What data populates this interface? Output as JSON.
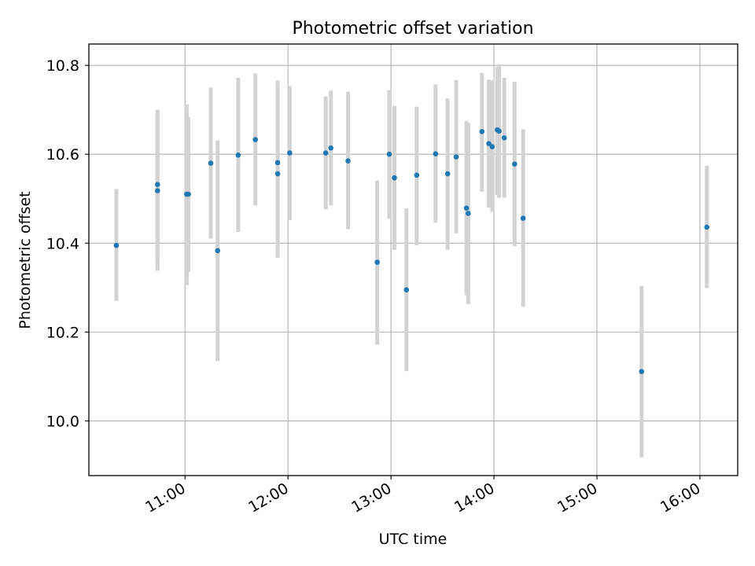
{
  "chart_data": {
    "type": "scatter",
    "title": "Photometric offset variation",
    "xlabel": "UTC time",
    "ylabel": "Photometric offset",
    "x_is_time": true,
    "xlim": [
      "10:04",
      "16:22"
    ],
    "ylim": [
      9.877,
      10.848
    ],
    "x_ticks": [
      "11:00",
      "12:00",
      "13:00",
      "14:00",
      "15:00",
      "16:00"
    ],
    "y_ticks": [
      "10.0",
      "10.2",
      "10.4",
      "10.6",
      "10.8"
    ],
    "grid": true,
    "marker_color": "#1f77b4",
    "errorbar_color": "#d3d3d3",
    "points": [
      {
        "t": "10:20",
        "y": 10.395,
        "lo": 10.27,
        "hi": 10.522
      },
      {
        "t": "10:44",
        "y": 10.532,
        "lo": 10.36,
        "hi": 10.7
      },
      {
        "t": "10:44",
        "y": 10.518,
        "lo": 10.338,
        "hi": 10.698
      },
      {
        "t": "11:01",
        "y": 10.51,
        "lo": 10.305,
        "hi": 10.712
      },
      {
        "t": "11:02",
        "y": 10.51,
        "lo": 10.335,
        "hi": 10.684
      },
      {
        "t": "11:15",
        "y": 10.58,
        "lo": 10.41,
        "hi": 10.75
      },
      {
        "t": "11:19",
        "y": 10.383,
        "lo": 10.135,
        "hi": 10.631
      },
      {
        "t": "11:31",
        "y": 10.598,
        "lo": 10.425,
        "hi": 10.772
      },
      {
        "t": "11:41",
        "y": 10.633,
        "lo": 10.485,
        "hi": 10.782
      },
      {
        "t": "11:54",
        "y": 10.581,
        "lo": 10.4,
        "hi": 10.766
      },
      {
        "t": "11:54",
        "y": 10.556,
        "lo": 10.367,
        "hi": 10.745
      },
      {
        "t": "12:01",
        "y": 10.603,
        "lo": 10.452,
        "hi": 10.754
      },
      {
        "t": "12:22",
        "y": 10.603,
        "lo": 10.476,
        "hi": 10.73
      },
      {
        "t": "12:25",
        "y": 10.614,
        "lo": 10.485,
        "hi": 10.743
      },
      {
        "t": "12:35",
        "y": 10.585,
        "lo": 10.431,
        "hi": 10.741
      },
      {
        "t": "12:52",
        "y": 10.357,
        "lo": 10.172,
        "hi": 10.541
      },
      {
        "t": "12:59",
        "y": 10.6,
        "lo": 10.455,
        "hi": 10.744
      },
      {
        "t": "13:02",
        "y": 10.547,
        "lo": 10.385,
        "hi": 10.709
      },
      {
        "t": "13:09",
        "y": 10.295,
        "lo": 10.112,
        "hi": 10.478
      },
      {
        "t": "13:15",
        "y": 10.553,
        "lo": 10.395,
        "hi": 10.707
      },
      {
        "t": "13:26",
        "y": 10.601,
        "lo": 10.446,
        "hi": 10.757
      },
      {
        "t": "13:33",
        "y": 10.556,
        "lo": 10.385,
        "hi": 10.726
      },
      {
        "t": "13:38",
        "y": 10.594,
        "lo": 10.422,
        "hi": 10.767
      },
      {
        "t": "13:44",
        "y": 10.479,
        "lo": 10.283,
        "hi": 10.675
      },
      {
        "t": "13:45",
        "y": 10.467,
        "lo": 10.263,
        "hi": 10.67
      },
      {
        "t": "13:53",
        "y": 10.651,
        "lo": 10.516,
        "hi": 10.783
      },
      {
        "t": "13:57",
        "y": 10.624,
        "lo": 10.48,
        "hi": 10.768
      },
      {
        "t": "13:59",
        "y": 10.617,
        "lo": 10.47,
        "hi": 10.766
      },
      {
        "t": "14:02",
        "y": 10.655,
        "lo": 10.508,
        "hi": 10.796
      },
      {
        "t": "14:03",
        "y": 10.652,
        "lo": 10.502,
        "hi": 10.802
      },
      {
        "t": "14:06",
        "y": 10.637,
        "lo": 10.502,
        "hi": 10.772
      },
      {
        "t": "14:12",
        "y": 10.578,
        "lo": 10.393,
        "hi": 10.763
      },
      {
        "t": "14:17",
        "y": 10.456,
        "lo": 10.257,
        "hi": 10.656
      },
      {
        "t": "15:26",
        "y": 10.111,
        "lo": 9.918,
        "hi": 10.304
      },
      {
        "t": "16:04",
        "y": 10.436,
        "lo": 10.299,
        "hi": 10.574
      }
    ]
  }
}
